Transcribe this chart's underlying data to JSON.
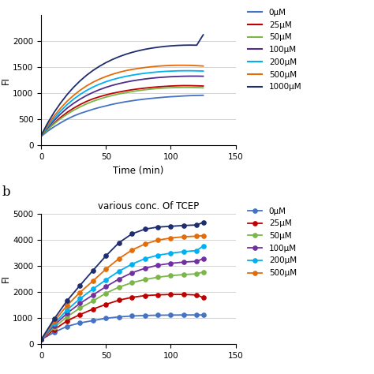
{
  "panel_a": {
    "xlabel": "Time (min)",
    "ylabel": "FI",
    "xlim": [
      0,
      150
    ],
    "ylim": [
      0,
      2500
    ],
    "yticks": [
      0,
      500,
      1000,
      1500,
      2000
    ],
    "xticks": [
      0,
      50,
      100,
      150
    ],
    "series": [
      {
        "label": "0μM",
        "color": "#4472C4",
        "x": [
          0,
          5,
          10,
          15,
          20,
          25,
          30,
          35,
          40,
          45,
          50,
          55,
          60,
          65,
          70,
          75,
          80,
          85,
          90,
          95,
          100,
          105,
          110,
          115,
          120,
          125
        ],
        "y": [
          175,
          275,
          360,
          435,
          505,
          565,
          615,
          655,
          695,
          730,
          760,
          790,
          815,
          838,
          857,
          875,
          890,
          903,
          915,
          926,
          935,
          942,
          950,
          956,
          960,
          962
        ]
      },
      {
        "label": "25μM",
        "color": "#C00000",
        "x": [
          0,
          5,
          10,
          15,
          20,
          25,
          30,
          35,
          40,
          45,
          50,
          55,
          60,
          65,
          70,
          75,
          80,
          85,
          90,
          95,
          100,
          105,
          110,
          115,
          120,
          125
        ],
        "y": [
          180,
          310,
          430,
          540,
          635,
          715,
          785,
          845,
          895,
          935,
          970,
          1000,
          1025,
          1048,
          1068,
          1085,
          1100,
          1113,
          1124,
          1132,
          1140,
          1145,
          1148,
          1147,
          1144,
          1140
        ]
      },
      {
        "label": "50μM",
        "color": "#7AB648",
        "x": [
          0,
          5,
          10,
          15,
          20,
          25,
          30,
          35,
          40,
          45,
          50,
          55,
          60,
          65,
          70,
          75,
          80,
          85,
          90,
          95,
          100,
          105,
          110,
          115,
          120,
          125
        ],
        "y": [
          180,
          305,
          415,
          515,
          600,
          675,
          740,
          798,
          848,
          890,
          928,
          960,
          988,
          1012,
          1033,
          1052,
          1068,
          1082,
          1093,
          1101,
          1107,
          1111,
          1113,
          1113,
          1110,
          1105
        ]
      },
      {
        "label": "100μM",
        "color": "#4E2D8C",
        "x": [
          0,
          5,
          10,
          15,
          20,
          25,
          30,
          35,
          40,
          45,
          50,
          55,
          60,
          65,
          70,
          75,
          80,
          85,
          90,
          95,
          100,
          105,
          110,
          115,
          120,
          125
        ],
        "y": [
          185,
          340,
          480,
          605,
          715,
          808,
          888,
          958,
          1018,
          1070,
          1115,
          1153,
          1185,
          1213,
          1237,
          1257,
          1274,
          1289,
          1301,
          1310,
          1318,
          1323,
          1327,
          1329,
          1329,
          1327
        ]
      },
      {
        "label": "200μM",
        "color": "#00B0F0",
        "x": [
          0,
          5,
          10,
          15,
          20,
          25,
          30,
          35,
          40,
          45,
          50,
          55,
          60,
          65,
          70,
          75,
          80,
          85,
          90,
          95,
          100,
          105,
          110,
          115,
          120,
          125
        ],
        "y": [
          185,
          360,
          520,
          660,
          783,
          888,
          978,
          1055,
          1120,
          1175,
          1222,
          1262,
          1295,
          1323,
          1347,
          1367,
          1384,
          1398,
          1410,
          1419,
          1425,
          1430,
          1432,
          1432,
          1430,
          1426
        ]
      },
      {
        "label": "500μM",
        "color": "#E36C09",
        "x": [
          0,
          5,
          10,
          15,
          20,
          25,
          30,
          35,
          40,
          45,
          50,
          55,
          60,
          65,
          70,
          75,
          80,
          85,
          90,
          95,
          100,
          105,
          110,
          115,
          120,
          125
        ],
        "y": [
          190,
          390,
          565,
          715,
          848,
          960,
          1058,
          1142,
          1213,
          1272,
          1322,
          1365,
          1402,
          1432,
          1457,
          1477,
          1494,
          1508,
          1520,
          1528,
          1534,
          1537,
          1537,
          1535,
          1530,
          1522
        ]
      },
      {
        "label": "1000μM",
        "color": "#1F2D6E",
        "x": [
          0,
          5,
          10,
          15,
          20,
          25,
          30,
          35,
          40,
          45,
          50,
          55,
          60,
          65,
          70,
          75,
          80,
          85,
          90,
          95,
          100,
          105,
          110,
          115,
          120,
          125
        ],
        "y": [
          195,
          430,
          635,
          815,
          975,
          1115,
          1238,
          1345,
          1438,
          1518,
          1588,
          1648,
          1700,
          1745,
          1783,
          1815,
          1842,
          1864,
          1882,
          1897,
          1908,
          1916,
          1921,
          1923,
          1921,
          2120
        ]
      }
    ]
  },
  "panel_b": {
    "title": "various conc. Of TCEP",
    "ylabel": "FI",
    "xlim": [
      0,
      150
    ],
    "ylim": [
      0,
      5000
    ],
    "yticks": [
      0,
      1000,
      2000,
      3000,
      4000,
      5000
    ],
    "xticks": [
      0,
      50,
      100,
      150
    ],
    "series": [
      {
        "label": "0μM",
        "color": "#4472C4",
        "x": [
          0,
          10,
          20,
          30,
          40,
          50,
          60,
          70,
          80,
          90,
          100,
          110,
          120,
          125
        ],
        "y": [
          170,
          450,
          680,
          810,
          900,
          990,
          1040,
          1075,
          1095,
          1105,
          1110,
          1115,
          1115,
          1115
        ]
      },
      {
        "label": "25μM",
        "color": "#C00000",
        "x": [
          0,
          10,
          20,
          30,
          40,
          50,
          60,
          70,
          80,
          90,
          100,
          110,
          120,
          125
        ],
        "y": [
          170,
          550,
          890,
          1130,
          1340,
          1520,
          1680,
          1790,
          1855,
          1885,
          1900,
          1900,
          1880,
          1780
        ]
      },
      {
        "label": "50μM",
        "color": "#7AB648",
        "x": [
          0,
          10,
          20,
          30,
          40,
          50,
          60,
          70,
          80,
          90,
          100,
          110,
          120,
          125
        ],
        "y": [
          170,
          630,
          1050,
          1380,
          1650,
          1950,
          2180,
          2350,
          2470,
          2560,
          2620,
          2660,
          2690,
          2760
        ]
      },
      {
        "label": "100μM",
        "color": "#7030A0",
        "x": [
          0,
          10,
          20,
          30,
          40,
          50,
          60,
          70,
          80,
          90,
          100,
          110,
          120,
          125
        ],
        "y": [
          170,
          710,
          1180,
          1560,
          1880,
          2200,
          2490,
          2730,
          2900,
          3020,
          3090,
          3140,
          3170,
          3270
        ]
      },
      {
        "label": "200μM",
        "color": "#00B0F0",
        "x": [
          0,
          10,
          20,
          30,
          40,
          50,
          60,
          70,
          80,
          90,
          100,
          110,
          120,
          125
        ],
        "y": [
          170,
          780,
          1310,
          1740,
          2110,
          2460,
          2790,
          3060,
          3270,
          3400,
          3480,
          3540,
          3580,
          3760
        ]
      },
      {
        "label": "500μM",
        "color": "#E36C09",
        "x": [
          0,
          10,
          20,
          30,
          40,
          50,
          60,
          70,
          80,
          90,
          100,
          110,
          120,
          125
        ],
        "y": [
          170,
          870,
          1480,
          1980,
          2420,
          2870,
          3270,
          3600,
          3830,
          3980,
          4060,
          4110,
          4130,
          4155
        ]
      },
      {
        "label": "1000μM",
        "color": "#1F2D6E",
        "x": [
          0,
          10,
          20,
          30,
          40,
          50,
          60,
          70,
          80,
          90,
          100,
          110,
          120,
          125
        ],
        "y": [
          170,
          960,
          1660,
          2250,
          2820,
          3380,
          3880,
          4220,
          4400,
          4480,
          4510,
          4540,
          4560,
          4660
        ]
      }
    ]
  },
  "label_b": "b",
  "bg_color": "#FFFFFF"
}
